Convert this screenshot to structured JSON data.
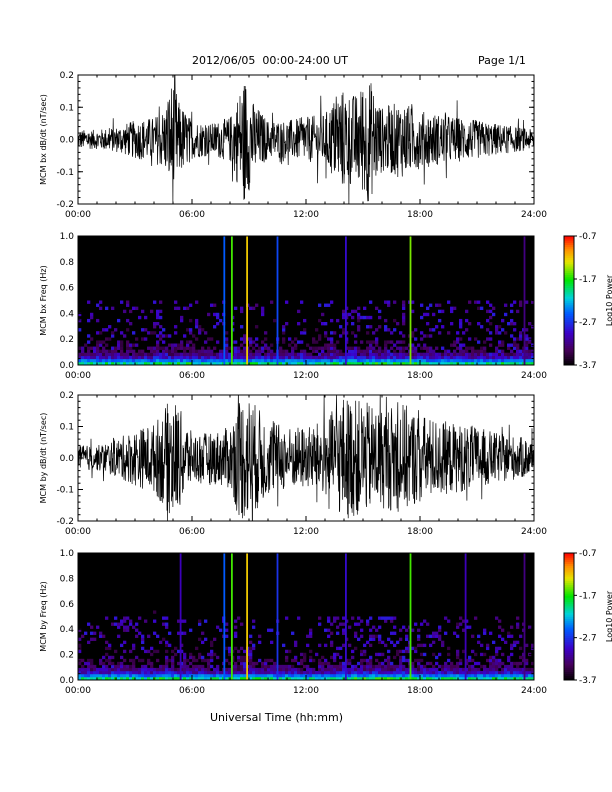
{
  "header": {
    "title": "2012/06/05  00:00-24:00 UT",
    "page": "Page 1/1"
  },
  "xlabel": "Universal Time (hh:mm)",
  "chart_data": [
    {
      "type": "line",
      "ylabel": "MCM bx dB/dt (nT/sec)",
      "xlim": [
        0,
        24
      ],
      "ylim": [
        -0.2,
        0.2
      ],
      "xticks": [
        "00:00",
        "06:00",
        "12:00",
        "18:00",
        "24:00"
      ],
      "yticks": [
        "-0.2",
        "-0.1",
        "0.0",
        "0.1",
        "0.2"
      ],
      "envelope_hours": [
        0,
        1,
        2,
        3,
        4,
        4.6,
        5,
        5.3,
        6,
        7,
        8,
        8.4,
        8.8,
        9.2,
        10,
        11,
        12,
        13,
        13.8,
        14.6,
        15.3,
        16,
        17,
        18,
        19,
        20,
        21,
        22,
        23,
        24
      ],
      "envelope_amp": [
        0.03,
        0.03,
        0.04,
        0.06,
        0.07,
        0.1,
        0.2,
        0.12,
        0.06,
        0.05,
        0.07,
        0.14,
        0.2,
        0.12,
        0.06,
        0.06,
        0.07,
        0.08,
        0.16,
        0.14,
        0.2,
        0.1,
        0.12,
        0.09,
        0.08,
        0.07,
        0.06,
        0.05,
        0.04,
        0.03
      ]
    },
    {
      "type": "heatmap",
      "ylabel": "MCM bx Freq (Hz)",
      "xlim": [
        0,
        24
      ],
      "ylim": [
        0,
        1.0
      ],
      "xticks": [
        "00:00",
        "06:00",
        "12:00",
        "18:00",
        "24:00"
      ],
      "yticks": [
        "0.0",
        "0.2",
        "0.4",
        "0.6",
        "0.8",
        "1.0"
      ],
      "colorbar": {
        "label": "Log10 Power",
        "ticks": [
          "-0.7",
          "-1.7",
          "-2.7",
          "-3.7"
        ],
        "range": [
          -3.7,
          -0.7
        ]
      },
      "vertical_lines_hours": [
        7.7,
        8.1,
        8.9,
        10.5,
        14.1,
        17.5,
        23.5
      ],
      "vertical_lines_level": [
        -2.5,
        -1.6,
        -1.2,
        -2.6,
        -2.9,
        -1.5,
        -3.2
      ]
    },
    {
      "type": "line",
      "ylabel": "MCM by dB/dt (nT/sec)",
      "xlim": [
        0,
        24
      ],
      "ylim": [
        -0.2,
        0.2
      ],
      "xticks": [
        "00:00",
        "06:00",
        "12:00",
        "18:00",
        "24:00"
      ],
      "yticks": [
        "-0.2",
        "-0.1",
        "0.0",
        "0.1",
        "0.2"
      ],
      "envelope_hours": [
        0,
        1,
        2,
        3,
        4,
        5,
        5.5,
        6,
        7,
        8,
        8.5,
        9,
        10,
        11,
        12,
        13,
        14,
        15,
        16,
        17,
        18,
        19,
        20,
        21,
        22,
        23,
        24
      ],
      "envelope_amp": [
        0.04,
        0.04,
        0.06,
        0.09,
        0.11,
        0.2,
        0.14,
        0.08,
        0.08,
        0.1,
        0.2,
        0.2,
        0.12,
        0.1,
        0.1,
        0.12,
        0.2,
        0.18,
        0.16,
        0.18,
        0.14,
        0.12,
        0.11,
        0.1,
        0.08,
        0.07,
        0.06
      ]
    },
    {
      "type": "heatmap",
      "ylabel": "MCM by Freq (Hz)",
      "xlim": [
        0,
        24
      ],
      "ylim": [
        0,
        1.0
      ],
      "xticks": [
        "00:00",
        "06:00",
        "12:00",
        "18:00",
        "24:00"
      ],
      "yticks": [
        "0.0",
        "0.2",
        "0.4",
        "0.6",
        "0.8",
        "1.0"
      ],
      "colorbar": {
        "label": "Log10 Power",
        "ticks": [
          "-0.7",
          "-1.7",
          "-2.7",
          "-3.7"
        ],
        "range": [
          -3.7,
          -0.7
        ]
      },
      "vertical_lines_hours": [
        5.4,
        7.7,
        8.1,
        8.9,
        10.5,
        14.1,
        17.5,
        20.4,
        23.5
      ],
      "vertical_lines_level": [
        -3.0,
        -2.5,
        -1.6,
        -1.2,
        -2.7,
        -2.9,
        -1.6,
        -3.0,
        -3.2
      ]
    }
  ],
  "colors": {
    "background": "#ffffff",
    "trace": "#000000",
    "spectrogram_bg": "#000000"
  }
}
